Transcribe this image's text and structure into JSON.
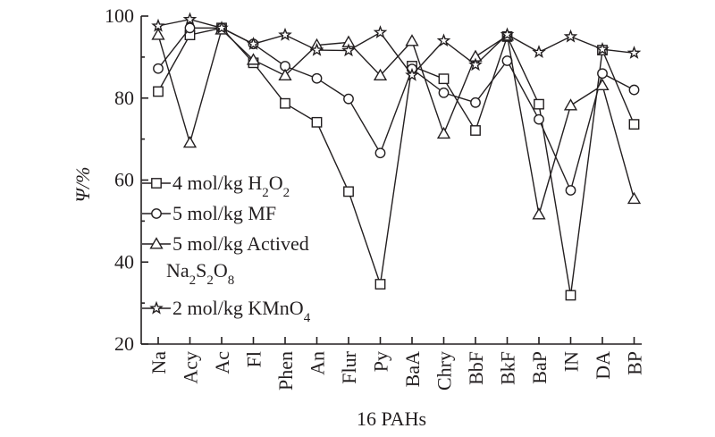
{
  "chart_data": {
    "type": "line",
    "xlabel": "16 PAHs",
    "ylabel": "Ψ/%",
    "ylim": [
      20,
      100
    ],
    "yticks": [
      20,
      40,
      60,
      80,
      100
    ],
    "grid": false,
    "legend_position": "left-middle",
    "categories": [
      "Na",
      "Acy",
      "Ac",
      "Fl",
      "Phen",
      "An",
      "Flur",
      "Py",
      "BaA",
      "Chry",
      "BbF",
      "BkF",
      "BaP",
      "IN",
      "DA",
      "BP"
    ],
    "series": [
      {
        "name": "4 mol/kg H2O2",
        "legend": {
          "pre": "4 mol/kg H",
          "sub1": "2",
          "mid": "O",
          "sub2": "2",
          "post": ""
        },
        "marker": "square",
        "values": [
          81.6,
          95.4,
          97.1,
          88.6,
          78.7,
          74.1,
          57.2,
          34.6,
          87.8,
          84.7,
          72.1,
          95.0,
          78.5,
          31.9,
          91.7,
          73.6
        ]
      },
      {
        "name": "5 mol/kg MF",
        "legend": {
          "pre": "5 mol/kg MF",
          "sub1": "",
          "mid": "",
          "sub2": "",
          "post": ""
        },
        "marker": "circle",
        "values": [
          87.2,
          97.1,
          97.1,
          93.2,
          87.8,
          84.8,
          79.8,
          66.6,
          87.1,
          81.3,
          78.9,
          89.1,
          74.8,
          57.5,
          86.0,
          82.0
        ]
      },
      {
        "name": "5 mol/kg Actived Na2S2O8",
        "legend": {
          "pre": "5 mol/kg Actived",
          "line2": {
            "pre": "Na",
            "sub1": "2",
            "mid": "S",
            "sub2": "2",
            "mid2": "O",
            "sub3": "8"
          }
        },
        "marker": "triangle",
        "values": [
          95.4,
          69.1,
          96.7,
          89.3,
          85.5,
          92.9,
          93.6,
          85.5,
          93.9,
          71.3,
          90.1,
          95.2,
          51.6,
          78.2,
          83.1,
          55.4
        ]
      },
      {
        "name": "2 mol/kg KMnO4",
        "legend": {
          "pre": "2 mol/kg KMnO",
          "sub1": "4",
          "mid": "",
          "sub2": "",
          "post": ""
        },
        "marker": "star",
        "values": [
          97.6,
          99.2,
          97.1,
          93.2,
          95.4,
          91.7,
          91.6,
          96.0,
          85.6,
          94.0,
          88.1,
          95.5,
          91.2,
          95.0,
          91.9,
          91.0
        ]
      }
    ]
  }
}
